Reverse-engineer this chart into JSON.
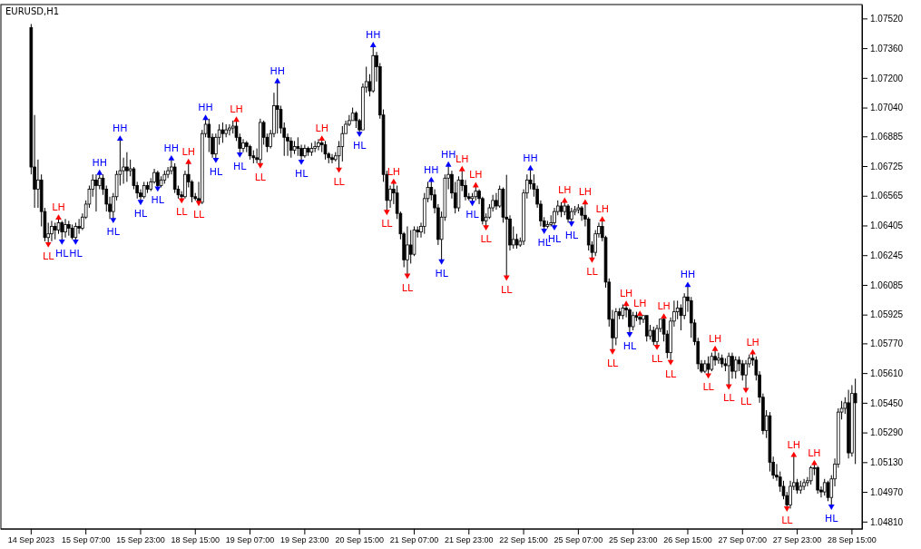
{
  "chart_data": {
    "type": "candlestick",
    "title": "EURUSD,H1",
    "categories": [
      "14 Sep 2023",
      null,
      null,
      null,
      null,
      null,
      null,
      null,
      null,
      null,
      null,
      null,
      null,
      null,
      null,
      null,
      "15 Sep 07:00",
      null,
      null,
      null,
      null,
      null,
      null,
      null,
      null,
      null,
      null,
      null,
      null,
      null,
      null,
      null,
      "15 Sep 23:00",
      null,
      null,
      null,
      null,
      null,
      null,
      null,
      null,
      null,
      null,
      null,
      null,
      null,
      null,
      null,
      "18 Sep 15:00",
      null,
      null,
      null,
      null,
      null,
      null,
      null,
      null,
      null,
      null,
      null,
      null,
      null,
      null,
      null,
      "19 Sep 07:00",
      null,
      null,
      null,
      null,
      null,
      null,
      null,
      null,
      null,
      null,
      null,
      null,
      null,
      null,
      null,
      "19 Sep 23:00",
      null,
      null,
      null,
      null,
      null,
      null,
      null,
      null,
      null,
      null,
      null,
      null,
      null,
      null,
      null,
      "20 Sep 15:00",
      null,
      null,
      null,
      null,
      null,
      null,
      null,
      null,
      null,
      null,
      null,
      null,
      null,
      null,
      null,
      "21 Sep 07:00",
      null,
      null,
      null,
      null,
      null,
      null,
      null,
      null,
      null,
      null,
      null,
      null,
      null,
      null,
      null,
      "21 Sep 23:00",
      null,
      null,
      null,
      null,
      null,
      null,
      null,
      null,
      null,
      null,
      null,
      null,
      null,
      null,
      null,
      "22 Sep 15:00",
      null,
      null,
      null,
      null,
      null,
      null,
      null,
      null,
      null,
      null,
      null,
      null,
      null,
      null,
      null,
      "25 Sep 07:00",
      null,
      null,
      null,
      null,
      null,
      null,
      null,
      null,
      null,
      null,
      null,
      null,
      null,
      null,
      null,
      "25 Sep 23:00",
      null,
      null,
      null,
      null,
      null,
      null,
      null,
      null,
      null,
      null,
      null,
      null,
      null,
      null,
      null,
      "26 Sep 15:00",
      null,
      null,
      null,
      null,
      null,
      null,
      null,
      null,
      null,
      null,
      null,
      null,
      null,
      null,
      null,
      "27 Sep 07:00",
      null,
      null,
      null,
      null,
      null,
      null,
      null,
      null,
      null,
      null,
      null,
      null,
      null,
      null,
      null,
      "27 Sep 23:00",
      null,
      null,
      null,
      null,
      null,
      null,
      null,
      null,
      null,
      null,
      null,
      null,
      null,
      null,
      null,
      "28 Sep 15:00",
      null
    ],
    "ohlc": [
      [
        1.0747,
        1.0749,
        1.0668,
        1.0672
      ],
      [
        1.0672,
        1.07,
        1.065,
        1.066
      ],
      [
        1.066,
        1.0676,
        1.065,
        1.0665
      ],
      [
        1.0665,
        1.0668,
        1.064,
        1.0648
      ],
      [
        1.0648,
        1.065,
        1.0632,
        1.0634
      ],
      [
        1.0634,
        1.0642,
        1.06305,
        1.0636
      ],
      [
        1.0636,
        1.0643,
        1.0632,
        1.064
      ],
      [
        1.064,
        1.0642,
        1.0633,
        1.0638
      ],
      [
        1.0638,
        1.06446,
        1.0636,
        1.0642
      ],
      [
        1.0642,
        1.0643,
        1.0632,
        1.0637
      ],
      [
        1.0637,
        1.0644,
        1.0634,
        1.0641
      ],
      [
        1.0641,
        1.0643,
        1.0635,
        1.0639
      ],
      [
        1.0639,
        1.0641,
        1.0633,
        1.0634
      ],
      [
        1.0634,
        1.0642,
        1.0632,
        1.064
      ],
      [
        1.064,
        1.0644,
        1.0636,
        1.0639
      ],
      [
        1.0639,
        1.0647,
        1.0638,
        1.0645
      ],
      [
        1.0645,
        1.0654,
        1.0644,
        1.0652
      ],
      [
        1.0652,
        1.0662,
        1.065,
        1.066
      ],
      [
        1.066,
        1.0668,
        1.0656,
        1.0665
      ],
      [
        1.0665,
        1.0668,
        1.0648,
        1.0662
      ],
      [
        1.0662,
        1.06687,
        1.066,
        1.0666
      ],
      [
        1.0666,
        1.0668,
        1.0657,
        1.066
      ],
      [
        1.066,
        1.0662,
        1.0648,
        1.0652
      ],
      [
        1.0652,
        1.0656,
        1.0644,
        1.0648
      ],
      [
        1.0648,
        1.0658,
        1.06436,
        1.0656
      ],
      [
        1.0656,
        1.067,
        1.0654,
        1.0668
      ],
      [
        1.0668,
        1.06871,
        1.0662,
        1.067
      ],
      [
        1.067,
        1.0677,
        1.0663,
        1.0672
      ],
      [
        1.0672,
        1.068,
        1.0664,
        1.067
      ],
      [
        1.067,
        1.0676,
        1.0667,
        1.0671
      ],
      [
        1.0671,
        1.0672,
        1.066,
        1.0662
      ],
      [
        1.0662,
        1.0664,
        1.0655,
        1.0658
      ],
      [
        1.0658,
        1.066,
        1.06533,
        1.0656
      ],
      [
        1.0656,
        1.0664,
        1.0655,
        1.0662
      ],
      [
        1.0662,
        1.0664,
        1.0658,
        1.066
      ],
      [
        1.066,
        1.0666,
        1.0659,
        1.0664
      ],
      [
        1.0664,
        1.0671,
        1.0663,
        1.0669
      ],
      [
        1.0669,
        1.067,
        1.06606,
        1.0662
      ],
      [
        1.0662,
        1.0667,
        1.0661,
        1.0665
      ],
      [
        1.0665,
        1.067,
        1.0663,
        1.0668
      ],
      [
        1.0668,
        1.0672,
        1.0666,
        1.067
      ],
      [
        1.067,
        1.06765,
        1.0668,
        1.0672
      ],
      [
        1.0672,
        1.0674,
        1.0658,
        1.066
      ],
      [
        1.066,
        1.0662,
        1.0655,
        1.0657
      ],
      [
        1.0657,
        1.0659,
        1.06542,
        1.0656
      ],
      [
        1.0656,
        1.067,
        1.0655,
        1.0668
      ],
      [
        1.0668,
        1.06746,
        1.0661,
        1.0664
      ],
      [
        1.0664,
        1.0665,
        1.0653,
        1.0656
      ],
      [
        1.0656,
        1.0658,
        1.0654,
        1.0655
      ],
      [
        1.0655,
        1.0664,
        1.06528,
        1.0653
      ],
      [
        1.0653,
        1.0692,
        1.0652,
        1.069
      ],
      [
        1.069,
        1.06983,
        1.0688,
        1.0695
      ],
      [
        1.0695,
        1.0698,
        1.068,
        1.0688
      ],
      [
        1.0688,
        1.069,
        1.0677,
        1.0679
      ],
      [
        1.0679,
        1.069,
        1.0676,
        1.0688
      ],
      [
        1.0688,
        1.0695,
        1.0684,
        1.0692
      ],
      [
        1.0692,
        1.0696,
        1.0685,
        1.069
      ],
      [
        1.069,
        1.0695,
        1.0688,
        1.0692
      ],
      [
        1.0692,
        1.0695,
        1.0689,
        1.0693
      ],
      [
        1.0693,
        1.0697,
        1.069,
        1.0694
      ],
      [
        1.0694,
        1.06973,
        1.0686,
        1.0688
      ],
      [
        1.0688,
        1.069,
        1.06789,
        1.0682
      ],
      [
        1.0682,
        1.0687,
        1.068,
        1.0685
      ],
      [
        1.0685,
        1.0686,
        1.068,
        1.0683
      ],
      [
        1.0683,
        1.0684,
        1.0676,
        1.0678
      ],
      [
        1.0678,
        1.0681,
        1.0674,
        1.0677
      ],
      [
        1.0677,
        1.0682,
        1.0674,
        1.0676
      ],
      [
        1.0676,
        1.0698,
        1.06731,
        1.0696
      ],
      [
        1.0696,
        1.0697,
        1.0684,
        1.0688
      ],
      [
        1.0688,
        1.069,
        1.068,
        1.0683
      ],
      [
        1.0683,
        1.0692,
        1.0682,
        1.069
      ],
      [
        1.069,
        1.0712,
        1.0688,
        1.0705
      ],
      [
        1.0705,
        1.07181,
        1.069,
        1.0703
      ],
      [
        1.0703,
        1.0705,
        1.069,
        1.0693
      ],
      [
        1.0693,
        1.0696,
        1.0678,
        1.0688
      ],
      [
        1.0688,
        1.069,
        1.0678,
        1.0686
      ],
      [
        1.0686,
        1.0688,
        1.0677,
        1.0681
      ],
      [
        1.0681,
        1.0686,
        1.0679,
        1.0683
      ],
      [
        1.0683,
        1.0688,
        1.0678,
        1.0682
      ],
      [
        1.0682,
        1.0684,
        1.0675,
        1.0678
      ],
      [
        1.0678,
        1.0684,
        1.0677,
        1.0682
      ],
      [
        1.0682,
        1.0683,
        1.0678,
        1.068
      ],
      [
        1.068,
        1.0685,
        1.0678,
        1.0682
      ],
      [
        1.0682,
        1.0686,
        1.068,
        1.0683
      ],
      [
        1.0683,
        1.0687,
        1.0681,
        1.0685
      ],
      [
        1.0685,
        1.06871,
        1.068,
        1.0684
      ],
      [
        1.0684,
        1.0686,
        1.0676,
        1.0679
      ],
      [
        1.0679,
        1.068,
        1.0674,
        1.0677
      ],
      [
        1.0677,
        1.0679,
        1.0674,
        1.0676
      ],
      [
        1.0676,
        1.068,
        1.0675,
        1.0678
      ],
      [
        1.0678,
        1.0686,
        1.06707,
        1.0683
      ],
      [
        1.0683,
        1.0694,
        1.0675,
        1.069
      ],
      [
        1.069,
        1.0697,
        1.069,
        1.0695
      ],
      [
        1.0695,
        1.07,
        1.0694,
        1.0697
      ],
      [
        1.0697,
        1.0704,
        1.0697,
        1.0701
      ],
      [
        1.0701,
        1.0702,
        1.0693,
        1.0697
      ],
      [
        1.0697,
        1.0698,
        1.069,
        1.0692
      ],
      [
        1.0692,
        1.0717,
        1.0692,
        1.0715
      ],
      [
        1.0715,
        1.0726,
        1.0712,
        1.0718
      ],
      [
        1.0718,
        1.0722,
        1.071,
        1.0713
      ],
      [
        1.0713,
        1.07375,
        1.0712,
        1.0732
      ],
      [
        1.0732,
        1.0734,
        1.0718,
        1.0726
      ],
      [
        1.0726,
        1.0728,
        1.0698,
        1.07
      ],
      [
        1.07,
        1.0703,
        1.0664,
        1.0668
      ],
      [
        1.0668,
        1.067,
        1.06479,
        1.0654
      ],
      [
        1.0654,
        1.0662,
        1.065,
        1.066
      ],
      [
        1.066,
        1.06639,
        1.0652,
        1.0658
      ],
      [
        1.0658,
        1.0662,
        1.0644,
        1.0647
      ],
      [
        1.0647,
        1.0648,
        1.0633,
        1.0636
      ],
      [
        1.0636,
        1.0637,
        1.0618,
        1.0622
      ],
      [
        1.0622,
        1.064,
        1.06136,
        1.063
      ],
      [
        1.063,
        1.0638,
        1.062,
        1.0625
      ],
      [
        1.0625,
        1.064,
        1.0624,
        1.0638
      ],
      [
        1.0638,
        1.064,
        1.0634,
        1.0637
      ],
      [
        1.0637,
        1.0642,
        1.0634,
        1.064
      ],
      [
        1.064,
        1.0658,
        1.0636,
        1.0655
      ],
      [
        1.0655,
        1.0664,
        1.0653,
        1.0661
      ],
      [
        1.0661,
        1.06649,
        1.0654,
        1.0657
      ],
      [
        1.0657,
        1.066,
        1.0647,
        1.065
      ],
      [
        1.065,
        1.0652,
        1.063,
        1.0633
      ],
      [
        1.0633,
        1.0648,
        1.06213,
        1.0645
      ],
      [
        1.0645,
        1.0668,
        1.0643,
        1.0666
      ],
      [
        1.0666,
        1.06731,
        1.066,
        1.0668
      ],
      [
        1.0668,
        1.067,
        1.0655,
        1.0658
      ],
      [
        1.0658,
        1.0664,
        1.0647,
        1.065
      ],
      [
        1.065,
        1.0667,
        1.0648,
        1.0665
      ],
      [
        1.0665,
        1.06707,
        1.0659,
        1.0662
      ],
      [
        1.0662,
        1.0665,
        1.0654,
        1.0656
      ],
      [
        1.0656,
        1.0658,
        1.0654,
        1.0655
      ],
      [
        1.0655,
        1.0658,
        1.06528,
        1.0656
      ],
      [
        1.0656,
        1.0662,
        1.0654,
        1.0659
      ],
      [
        1.0659,
        1.066,
        1.0652,
        1.0655
      ],
      [
        1.0655,
        1.0656,
        1.0641,
        1.0643
      ],
      [
        1.0643,
        1.0647,
        1.06397,
        1.0645
      ],
      [
        1.0645,
        1.0652,
        1.0644,
        1.065
      ],
      [
        1.065,
        1.0657,
        1.0648,
        1.0654
      ],
      [
        1.0654,
        1.0658,
        1.0649,
        1.0651
      ],
      [
        1.0651,
        1.0662,
        1.065,
        1.066
      ],
      [
        1.066,
        1.0661,
        1.0642,
        1.0645
      ],
      [
        1.0645,
        1.06678,
        1.06126,
        1.0644
      ],
      [
        1.0644,
        1.0646,
        1.0627,
        1.063
      ],
      [
        1.063,
        1.064,
        1.0628,
        1.0633
      ],
      [
        1.0633,
        1.0636,
        1.0628,
        1.063
      ],
      [
        1.063,
        1.0634,
        1.0629,
        1.0632
      ],
      [
        1.0632,
        1.066,
        1.063,
        1.0658
      ],
      [
        1.0658,
        1.0668,
        1.0655,
        1.0665
      ],
      [
        1.0665,
        1.06712,
        1.066,
        1.0663
      ],
      [
        1.0663,
        1.0668,
        1.0656,
        1.066
      ],
      [
        1.066,
        1.0662,
        1.065,
        1.0652
      ],
      [
        1.0652,
        1.0654,
        1.064,
        1.0643
      ],
      [
        1.0643,
        1.0645,
        1.06378,
        1.064
      ],
      [
        1.064,
        1.0643,
        1.0639,
        1.0641
      ],
      [
        1.0641,
        1.0646,
        1.064,
        1.0642
      ],
      [
        1.0642,
        1.065,
        1.06397,
        1.0648
      ],
      [
        1.0648,
        1.0654,
        1.0646,
        1.0651
      ],
      [
        1.0651,
        1.0653,
        1.0645,
        1.0648
      ],
      [
        1.0648,
        1.06537,
        1.0646,
        1.0651
      ],
      [
        1.0651,
        1.0652,
        1.0642,
        1.0644
      ],
      [
        1.0644,
        1.065,
        1.06417,
        1.0648
      ],
      [
        1.0648,
        1.0651,
        1.0646,
        1.0649
      ],
      [
        1.0649,
        1.0652,
        1.0647,
        1.065
      ],
      [
        1.065,
        1.0651,
        1.0643,
        1.0646
      ],
      [
        1.0646,
        1.06528,
        1.064,
        1.0644
      ],
      [
        1.0644,
        1.0645,
        1.0627,
        1.063
      ],
      [
        1.063,
        1.0632,
        1.06223,
        1.0626
      ],
      [
        1.0626,
        1.0638,
        1.0624,
        1.0636
      ],
      [
        1.0636,
        1.0642,
        1.0634,
        1.064
      ],
      [
        1.064,
        1.06436,
        1.0632,
        1.0634
      ],
      [
        1.0634,
        1.0635,
        1.0607,
        1.061
      ],
      [
        1.061,
        1.0612,
        1.0586,
        1.059
      ],
      [
        1.059,
        1.0595,
        1.05729,
        1.058
      ],
      [
        1.058,
        1.0596,
        1.0576,
        1.0594
      ],
      [
        1.0594,
        1.0596,
        1.059,
        1.0592
      ],
      [
        1.0592,
        1.0598,
        1.059,
        1.0596
      ],
      [
        1.0596,
        1.05981,
        1.0591,
        1.0595
      ],
      [
        1.0595,
        1.0596,
        1.05821,
        1.0586
      ],
      [
        1.0586,
        1.0594,
        1.0584,
        1.0592
      ],
      [
        1.0592,
        1.0594,
        1.0589,
        1.0591
      ],
      [
        1.0591,
        1.05928,
        1.0587,
        1.059
      ],
      [
        1.059,
        1.0592,
        1.0588,
        1.0592
      ],
      [
        1.0592,
        1.0592,
        1.0578,
        1.0581
      ],
      [
        1.0581,
        1.0587,
        1.0579,
        1.0584
      ],
      [
        1.0584,
        1.0586,
        1.0576,
        1.0578
      ],
      [
        1.0578,
        1.0587,
        1.05753,
        1.0585
      ],
      [
        1.0585,
        1.059,
        1.0583,
        1.059
      ],
      [
        1.059,
        1.05913,
        1.0578,
        1.0582
      ],
      [
        1.0582,
        1.0584,
        1.0569,
        1.0572
      ],
      [
        1.0572,
        1.0591,
        1.05671,
        1.0589
      ],
      [
        1.0589,
        1.06,
        1.0586,
        1.0594
      ],
      [
        1.0594,
        1.06,
        1.059,
        1.0596
      ],
      [
        1.0596,
        1.0598,
        1.0584,
        1.0592
      ],
      [
        1.0592,
        1.0604,
        1.059,
        1.0602
      ],
      [
        1.0602,
        1.06083,
        1.0594,
        1.06
      ],
      [
        1.06,
        1.0602,
        1.058,
        1.0588
      ],
      [
        1.0588,
        1.059,
        1.0576,
        1.0578
      ],
      [
        1.0578,
        1.058,
        1.0563,
        1.0566
      ],
      [
        1.0566,
        1.0568,
        1.0561,
        1.0562
      ],
      [
        1.0562,
        1.0568,
        1.0561,
        1.0566
      ],
      [
        1.0566,
        1.057,
        1.05599,
        1.0563
      ],
      [
        1.0563,
        1.0572,
        1.0562,
        1.057
      ],
      [
        1.057,
        1.05739,
        1.0565,
        1.0568
      ],
      [
        1.0568,
        1.0572,
        1.0566,
        1.0569
      ],
      [
        1.0569,
        1.0571,
        1.0564,
        1.0566
      ],
      [
        1.0566,
        1.0569,
        1.0562,
        1.0565
      ],
      [
        1.0565,
        1.0572,
        1.0554,
        1.057
      ],
      [
        1.057,
        1.0572,
        1.0558,
        1.0562
      ],
      [
        1.0562,
        1.057,
        1.0558,
        1.0568
      ],
      [
        1.0568,
        1.057,
        1.0562,
        1.0566
      ],
      [
        1.0566,
        1.0568,
        1.0557,
        1.056
      ],
      [
        1.056,
        1.0568,
        1.05521,
        1.0566
      ],
      [
        1.0566,
        1.0571,
        1.0564,
        1.0569
      ],
      [
        1.0569,
        1.0572,
        1.0565,
        1.0568
      ],
      [
        1.0568,
        1.057,
        1.0557,
        1.056
      ],
      [
        1.056,
        1.0562,
        1.0545,
        1.0548
      ],
      [
        1.0548,
        1.055,
        1.0528,
        1.053
      ],
      [
        1.053,
        1.0541,
        1.0526,
        1.0538
      ],
      [
        1.0538,
        1.054,
        1.0508,
        1.0513
      ],
      [
        1.0513,
        1.0516,
        1.0504,
        1.0506
      ],
      [
        1.0506,
        1.0512,
        1.0503,
        1.0505
      ],
      [
        1.0505,
        1.0508,
        1.0497,
        1.05
      ],
      [
        1.05,
        1.0503,
        1.0493,
        1.0495
      ],
      [
        1.0495,
        1.0497,
        1.04882,
        1.049
      ],
      [
        1.049,
        1.0503,
        1.0488,
        1.05
      ],
      [
        1.05,
        1.05168,
        1.0498,
        1.0502
      ],
      [
        1.0502,
        1.0504,
        1.0496,
        1.0498
      ],
      [
        1.0498,
        1.0503,
        1.0496,
        1.05
      ],
      [
        1.05,
        1.0504,
        1.0498,
        1.0502
      ],
      [
        1.0502,
        1.0505,
        1.05,
        1.0503
      ],
      [
        1.0503,
        1.0511,
        1.0501,
        1.051
      ],
      [
        1.051,
        1.05124,
        1.0506,
        1.051
      ],
      [
        1.051,
        1.0511,
        1.0496,
        1.0498
      ],
      [
        1.0498,
        1.05,
        1.0494,
        1.0497
      ],
      [
        1.0497,
        1.0504,
        1.0495,
        1.0502
      ],
      [
        1.0502,
        1.0503,
        1.0492,
        1.0494
      ],
      [
        1.0494,
        1.0506,
        1.04892,
        1.0504
      ],
      [
        1.0504,
        1.0515,
        1.05,
        1.0512
      ],
      [
        1.0512,
        1.0542,
        1.051,
        1.054
      ],
      [
        1.054,
        1.0546,
        1.0536,
        1.0542
      ],
      [
        1.0542,
        1.0548,
        1.0539,
        1.0545
      ],
      [
        1.0545,
        1.0552,
        1.0515,
        1.0518
      ],
      [
        1.0518,
        1.05545,
        1.0516,
        1.055
      ],
      [
        1.055,
        1.0558,
        1.0512,
        1.0545
      ]
    ],
    "series": [
      {
        "type": "scatter",
        "color": "#0000ff",
        "values": [
          null,
          null,
          null,
          null,
          null,
          null,
          null,
          null,
          null,
          1.0632,
          null,
          null,
          null,
          1.0632,
          null,
          null,
          null,
          null,
          null,
          null,
          1.06687,
          null,
          null,
          null,
          1.06436,
          null,
          1.06871,
          null,
          null,
          null,
          null,
          null,
          1.06533,
          null,
          null,
          null,
          null,
          1.06606,
          null,
          null,
          null,
          1.06765,
          null,
          null,
          null,
          null,
          null,
          null,
          null,
          null,
          null,
          1.06983,
          null,
          null,
          1.0676,
          null,
          null,
          null,
          null,
          null,
          null,
          1.06789,
          null,
          null,
          null,
          null,
          null,
          null,
          null,
          null,
          null,
          null,
          1.07181,
          null,
          null,
          null,
          null,
          null,
          null,
          1.0675,
          null,
          null,
          null,
          null,
          null,
          null,
          null,
          null,
          null,
          null,
          null,
          null,
          null,
          null,
          null,
          null,
          1.069,
          null,
          null,
          null,
          1.07375,
          null,
          null,
          null,
          null,
          null,
          null,
          null,
          null,
          null,
          null,
          null,
          null,
          null,
          null,
          null,
          null,
          1.06649,
          null,
          null,
          1.06213,
          null,
          1.06731,
          null,
          null,
          null,
          null,
          null,
          null,
          1.06528,
          null,
          null,
          null,
          null,
          null,
          null,
          null,
          null,
          null,
          null,
          null,
          null,
          null,
          null,
          null,
          null,
          1.06712,
          null,
          null,
          null,
          1.06378,
          null,
          null,
          1.06397,
          null,
          null,
          null,
          null,
          1.06417,
          null,
          null,
          null,
          null,
          null,
          null,
          null,
          null,
          null,
          null,
          null,
          null,
          null,
          null,
          null,
          null,
          1.05821,
          null,
          null,
          null,
          null,
          null,
          null,
          null,
          null,
          null,
          null,
          null,
          null,
          null,
          null,
          null,
          null,
          1.06083,
          null,
          null,
          null,
          null,
          null,
          null,
          null,
          null,
          null,
          null,
          null,
          null,
          null,
          null,
          null,
          null,
          null,
          null,
          null,
          null,
          null,
          null,
          null,
          null,
          null,
          null,
          null,
          null,
          null,
          null,
          null,
          null,
          null,
          null,
          null,
          null,
          null,
          null,
          null,
          null,
          null,
          1.04892,
          null,
          null,
          null,
          null,
          null,
          null,
          null
        ],
        "value_labels": [
          null,
          null,
          null,
          null,
          null,
          null,
          null,
          null,
          null,
          "HL",
          null,
          null,
          null,
          "HL",
          null,
          null,
          null,
          null,
          null,
          null,
          "HH",
          null,
          null,
          null,
          "HL",
          null,
          "HH",
          null,
          null,
          null,
          null,
          null,
          "HL",
          null,
          null,
          null,
          null,
          "HL",
          null,
          null,
          null,
          "HH",
          null,
          null,
          null,
          null,
          null,
          null,
          null,
          null,
          null,
          "HH",
          null,
          null,
          "HL",
          null,
          null,
          null,
          null,
          null,
          null,
          "HL",
          null,
          null,
          null,
          null,
          null,
          null,
          null,
          null,
          null,
          null,
          "HH",
          null,
          null,
          null,
          null,
          null,
          null,
          "HL",
          null,
          null,
          null,
          null,
          null,
          null,
          null,
          null,
          null,
          null,
          null,
          null,
          null,
          null,
          null,
          null,
          "HL",
          null,
          null,
          null,
          "HH",
          null,
          null,
          null,
          null,
          null,
          null,
          null,
          null,
          null,
          null,
          null,
          null,
          null,
          null,
          null,
          null,
          "HH",
          null,
          null,
          "HL",
          null,
          "HH",
          null,
          null,
          null,
          null,
          null,
          null,
          "HL",
          null,
          null,
          null,
          null,
          null,
          null,
          null,
          null,
          null,
          null,
          null,
          null,
          null,
          null,
          null,
          null,
          "HH",
          null,
          null,
          null,
          "HL",
          null,
          null,
          "HL",
          null,
          null,
          null,
          null,
          "HL",
          null,
          null,
          null,
          null,
          null,
          null,
          null,
          null,
          null,
          null,
          null,
          null,
          null,
          null,
          null,
          null,
          "HL",
          null,
          null,
          null,
          null,
          null,
          null,
          null,
          null,
          null,
          null,
          null,
          null,
          null,
          null,
          null,
          null,
          "HH",
          null,
          null,
          null,
          null,
          null,
          null,
          null,
          null,
          null,
          null,
          null,
          null,
          null,
          null,
          null,
          null,
          null,
          null,
          null,
          null,
          null,
          null,
          null,
          null,
          null,
          null,
          null,
          null,
          null,
          null,
          null,
          null,
          null,
          null,
          null,
          null,
          null,
          null,
          null,
          null,
          null,
          "HL",
          null,
          null,
          null,
          null,
          null,
          null,
          null
        ]
      },
      {
        "type": "scatter",
        "color": "#ff0000",
        "values": [
          null,
          null,
          null,
          null,
          null,
          1.06305,
          null,
          null,
          1.06446,
          null,
          null,
          null,
          null,
          null,
          null,
          null,
          null,
          null,
          null,
          null,
          null,
          null,
          null,
          null,
          null,
          null,
          null,
          null,
          null,
          null,
          null,
          null,
          null,
          null,
          null,
          null,
          null,
          null,
          null,
          null,
          null,
          null,
          null,
          null,
          1.06542,
          null,
          1.06746,
          null,
          null,
          1.06528,
          null,
          null,
          null,
          null,
          null,
          null,
          null,
          null,
          null,
          null,
          1.06973,
          null,
          null,
          null,
          null,
          null,
          null,
          1.06731,
          null,
          null,
          null,
          null,
          null,
          null,
          null,
          null,
          null,
          null,
          null,
          null,
          null,
          null,
          null,
          null,
          null,
          1.06871,
          null,
          null,
          null,
          null,
          1.06707,
          null,
          null,
          null,
          null,
          null,
          null,
          null,
          null,
          null,
          null,
          null,
          null,
          null,
          1.06479,
          null,
          1.06639,
          null,
          null,
          null,
          1.06136,
          null,
          null,
          null,
          null,
          null,
          null,
          null,
          null,
          null,
          null,
          null,
          null,
          null,
          null,
          null,
          1.06707,
          null,
          null,
          null,
          1.0662,
          null,
          null,
          1.06397,
          null,
          null,
          null,
          null,
          null,
          1.06126,
          null,
          null,
          null,
          null,
          null,
          null,
          null,
          null,
          null,
          null,
          null,
          null,
          null,
          null,
          null,
          null,
          1.06537,
          null,
          null,
          null,
          null,
          null,
          1.06528,
          null,
          1.06223,
          null,
          null,
          1.06436,
          null,
          null,
          1.05729,
          null,
          null,
          null,
          1.05981,
          null,
          null,
          null,
          1.05928,
          null,
          null,
          null,
          null,
          1.05753,
          null,
          1.05913,
          null,
          1.05671,
          null,
          null,
          null,
          null,
          null,
          null,
          null,
          null,
          null,
          null,
          1.05599,
          null,
          1.05739,
          null,
          null,
          null,
          1.0554,
          null,
          null,
          null,
          null,
          1.05521,
          null,
          1.0572,
          null,
          null,
          null,
          null,
          null,
          null,
          null,
          null,
          null,
          1.04882,
          null,
          1.05168,
          null,
          null,
          null,
          null,
          null,
          1.05124,
          null,
          null,
          null,
          null,
          null,
          null,
          null,
          null,
          null,
          null,
          null,
          null
        ],
        "value_labels": [
          null,
          null,
          null,
          null,
          null,
          "LL",
          null,
          null,
          "LH",
          null,
          null,
          null,
          null,
          null,
          null,
          null,
          null,
          null,
          null,
          null,
          null,
          null,
          null,
          null,
          null,
          null,
          null,
          null,
          null,
          null,
          null,
          null,
          null,
          null,
          null,
          null,
          null,
          null,
          null,
          null,
          null,
          null,
          null,
          null,
          "LL",
          null,
          "LH",
          null,
          null,
          "LL",
          null,
          null,
          null,
          null,
          null,
          null,
          null,
          null,
          null,
          null,
          "LH",
          null,
          null,
          null,
          null,
          null,
          null,
          "LL",
          null,
          null,
          null,
          null,
          null,
          null,
          null,
          null,
          null,
          null,
          null,
          null,
          null,
          null,
          null,
          null,
          null,
          "LH",
          null,
          null,
          null,
          null,
          "LL",
          null,
          null,
          null,
          null,
          null,
          null,
          null,
          null,
          null,
          null,
          null,
          null,
          null,
          "LL",
          null,
          "LH",
          null,
          null,
          null,
          "LL",
          null,
          null,
          null,
          null,
          null,
          null,
          null,
          null,
          null,
          null,
          null,
          null,
          null,
          null,
          null,
          "LH",
          null,
          null,
          null,
          "LH",
          null,
          null,
          "LL",
          null,
          null,
          null,
          null,
          null,
          "LL",
          null,
          null,
          null,
          null,
          null,
          null,
          null,
          null,
          null,
          null,
          null,
          null,
          null,
          null,
          null,
          null,
          "LH",
          null,
          null,
          null,
          null,
          null,
          "LH",
          null,
          "LL",
          null,
          null,
          "LH",
          null,
          null,
          "LL",
          null,
          null,
          null,
          "LH",
          null,
          null,
          null,
          "LH",
          null,
          null,
          null,
          null,
          "LL",
          null,
          "LH",
          null,
          "LL",
          null,
          null,
          null,
          null,
          null,
          null,
          null,
          null,
          null,
          null,
          "LL",
          null,
          "LH",
          null,
          null,
          null,
          "LL",
          null,
          null,
          null,
          null,
          "LL",
          null,
          "LH",
          null,
          null,
          null,
          null,
          null,
          null,
          null,
          null,
          null,
          "LL",
          null,
          "LH",
          null,
          null,
          null,
          null,
          null,
          "LH",
          null,
          null,
          null,
          null,
          null,
          null,
          null,
          null,
          null,
          null,
          null,
          null
        ]
      }
    ],
    "ylim": [
      1.0477,
      1.07595
    ],
    "yticks": [
      {
        "value": 1.0752,
        "label": "1.07520"
      },
      {
        "value": 1.0736,
        "label": "1.07360"
      },
      {
        "value": 1.072,
        "label": "1.07200"
      },
      {
        "value": 1.0704,
        "label": "1.07040"
      },
      1.06885,
      1.06725,
      1.06565,
      1.06405,
      1.06245,
      1.06085,
      1.05925,
      {
        "value": 1.0577,
        "label": "1.05770"
      },
      {
        "value": 1.0561,
        "label": "1.05610"
      },
      {
        "value": 1.0545,
        "label": "1.05450"
      },
      {
        "value": 1.0529,
        "label": "1.05290"
      },
      {
        "value": 1.0513,
        "label": "1.05130"
      },
      {
        "value": 1.0497,
        "label": "1.04970"
      },
      {
        "value": 1.0481,
        "label": "1.04810"
      }
    ],
    "marker": "triangle"
  }
}
